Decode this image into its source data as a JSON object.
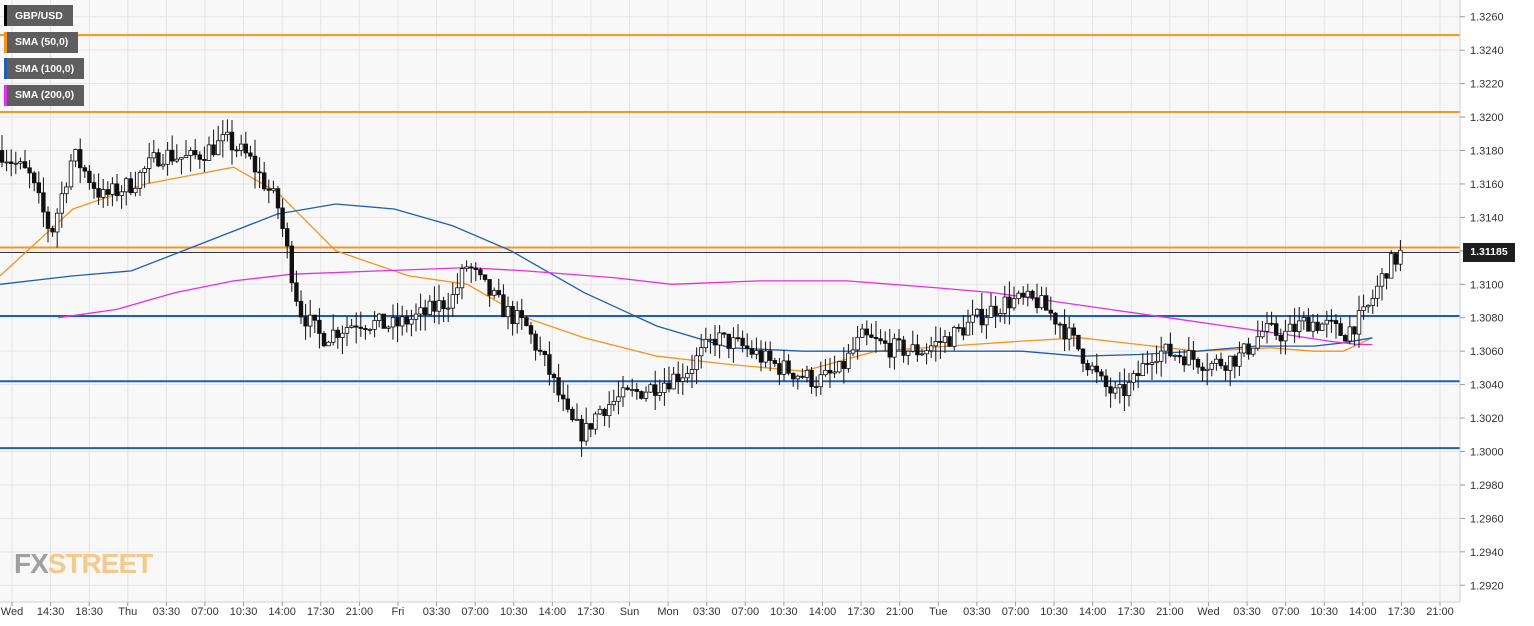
{
  "legend": [
    {
      "label": "GBP/USD",
      "color": "#000000"
    },
    {
      "label": "SMA (50,0)",
      "color": "#f7931e"
    },
    {
      "label": "SMA (100,0)",
      "color": "#1f5fb0"
    },
    {
      "label": "SMA (200,0)",
      "color": "#e62ee6"
    }
  ],
  "current_price": "1.31185",
  "logo": {
    "part1": "FX",
    "part2": "STREET"
  },
  "chart_data": {
    "type": "candlestick",
    "title": "GBP/USD",
    "ylim": [
      1.291,
      1.327
    ],
    "y_ticks": [
      "1.3260",
      "1.3240",
      "1.3220",
      "1.3200",
      "1.3180",
      "1.3160",
      "1.3140",
      "1.3120",
      "1.3100",
      "1.3080",
      "1.3060",
      "1.3040",
      "1.3020",
      "1.3000",
      "1.2980",
      "1.2960",
      "1.2940",
      "1.2920"
    ],
    "x_ticks": [
      "Wed",
      "14:30",
      "18:30",
      "Thu",
      "03:30",
      "07:00",
      "10:30",
      "14:00",
      "17:30",
      "21:00",
      "Fri",
      "03:30",
      "07:00",
      "10:30",
      "14:00",
      "17:30",
      "Sun",
      "Mon",
      "03:30",
      "07:00",
      "10:30",
      "14:00",
      "17:30",
      "21:00",
      "Tue",
      "03:30",
      "07:00",
      "10:30",
      "14:00",
      "17:30",
      "21:00",
      "Wed",
      "03:30",
      "07:00",
      "10:30",
      "14:00",
      "17:30",
      "21:00"
    ],
    "grid": true,
    "horizontal_levels": [
      {
        "value": 1.3249,
        "color": "#f7931e"
      },
      {
        "value": 1.3203,
        "color": "#f7931e"
      },
      {
        "value": 1.3122,
        "color": "#f7931e"
      },
      {
        "value": 1.3119,
        "color": "#333333"
      },
      {
        "value": 1.3081,
        "color": "#1f5fb0"
      },
      {
        "value": 1.3042,
        "color": "#1f5fb0"
      },
      {
        "value": 1.3002,
        "color": "#1f5fb0"
      }
    ],
    "price_path": [
      [
        0,
        1.318
      ],
      [
        0.02,
        1.3165
      ],
      [
        0.035,
        1.313
      ],
      [
        0.05,
        1.3178
      ],
      [
        0.07,
        1.3152
      ],
      [
        0.09,
        1.316
      ],
      [
        0.11,
        1.3178
      ],
      [
        0.13,
        1.3175
      ],
      [
        0.155,
        1.3186
      ],
      [
        0.17,
        1.3176
      ],
      [
        0.19,
        1.3148
      ],
      [
        0.205,
        1.3085
      ],
      [
        0.22,
        1.3068
      ],
      [
        0.245,
        1.3078
      ],
      [
        0.27,
        1.3075
      ],
      [
        0.29,
        1.3082
      ],
      [
        0.31,
        1.3092
      ],
      [
        0.32,
        1.3112
      ],
      [
        0.33,
        1.31
      ],
      [
        0.345,
        1.3085
      ],
      [
        0.36,
        1.3075
      ],
      [
        0.375,
        1.305
      ],
      [
        0.39,
        1.3018
      ],
      [
        0.4,
        1.301
      ],
      [
        0.41,
        1.3025
      ],
      [
        0.425,
        1.3032
      ],
      [
        0.445,
        1.3038
      ],
      [
        0.47,
        1.3048
      ],
      [
        0.49,
        1.3068
      ],
      [
        0.51,
        1.3062
      ],
      [
        0.53,
        1.3052
      ],
      [
        0.56,
        1.3042
      ],
      [
        0.575,
        1.3048
      ],
      [
        0.59,
        1.3068
      ],
      [
        0.61,
        1.3062
      ],
      [
        0.63,
        1.306
      ],
      [
        0.65,
        1.3068
      ],
      [
        0.67,
        1.308
      ],
      [
        0.69,
        1.309
      ],
      [
        0.71,
        1.309
      ],
      [
        0.725,
        1.3078
      ],
      [
        0.74,
        1.306
      ],
      [
        0.755,
        1.304
      ],
      [
        0.765,
        1.3033
      ],
      [
        0.775,
        1.304
      ],
      [
        0.79,
        1.306
      ],
      [
        0.81,
        1.3058
      ],
      [
        0.83,
        1.3052
      ],
      [
        0.85,
        1.3057
      ],
      [
        0.865,
        1.3072
      ],
      [
        0.88,
        1.307
      ],
      [
        0.895,
        1.3078
      ],
      [
        0.91,
        1.3075
      ],
      [
        0.92,
        1.307
      ],
      [
        0.935,
        1.3082
      ],
      [
        0.95,
        1.311
      ],
      [
        0.96,
        1.3119
      ]
    ],
    "series": [
      {
        "name": "SMA (50,0)",
        "color": "#f7931e",
        "points": [
          [
            0,
            1.3105
          ],
          [
            0.05,
            1.3145
          ],
          [
            0.1,
            1.316
          ],
          [
            0.16,
            1.317
          ],
          [
            0.19,
            1.3155
          ],
          [
            0.23,
            1.312
          ],
          [
            0.28,
            1.3105
          ],
          [
            0.32,
            1.31
          ],
          [
            0.36,
            1.308
          ],
          [
            0.4,
            1.3068
          ],
          [
            0.45,
            1.3057
          ],
          [
            0.5,
            1.3052
          ],
          [
            0.55,
            1.3048
          ],
          [
            0.6,
            1.306
          ],
          [
            0.65,
            1.3063
          ],
          [
            0.7,
            1.3066
          ],
          [
            0.74,
            1.3068
          ],
          [
            0.78,
            1.3064
          ],
          [
            0.82,
            1.306
          ],
          [
            0.87,
            1.3062
          ],
          [
            0.9,
            1.306
          ],
          [
            0.92,
            1.306
          ],
          [
            0.94,
            1.3068
          ]
        ]
      },
      {
        "name": "SMA (100,0)",
        "color": "#1f5fb0",
        "points": [
          [
            0,
            1.31
          ],
          [
            0.05,
            1.3105
          ],
          [
            0.09,
            1.3108
          ],
          [
            0.14,
            1.3125
          ],
          [
            0.19,
            1.3142
          ],
          [
            0.23,
            1.3148
          ],
          [
            0.27,
            1.3145
          ],
          [
            0.31,
            1.3135
          ],
          [
            0.35,
            1.312
          ],
          [
            0.4,
            1.3095
          ],
          [
            0.45,
            1.3075
          ],
          [
            0.5,
            1.3062
          ],
          [
            0.55,
            1.306
          ],
          [
            0.6,
            1.306
          ],
          [
            0.65,
            1.306
          ],
          [
            0.7,
            1.306
          ],
          [
            0.74,
            1.3057
          ],
          [
            0.78,
            1.3058
          ],
          [
            0.82,
            1.306
          ],
          [
            0.86,
            1.3063
          ],
          [
            0.9,
            1.3063
          ],
          [
            0.92,
            1.3065
          ],
          [
            0.94,
            1.3068
          ]
        ]
      },
      {
        "name": "SMA (200,0)",
        "color": "#e62ee6",
        "points": [
          [
            0.04,
            1.308
          ],
          [
            0.08,
            1.3085
          ],
          [
            0.12,
            1.3095
          ],
          [
            0.16,
            1.3102
          ],
          [
            0.2,
            1.3106
          ],
          [
            0.26,
            1.3108
          ],
          [
            0.32,
            1.311
          ],
          [
            0.36,
            1.3108
          ],
          [
            0.42,
            1.3104
          ],
          [
            0.46,
            1.31
          ],
          [
            0.52,
            1.3102
          ],
          [
            0.58,
            1.3102
          ],
          [
            0.64,
            1.3098
          ],
          [
            0.68,
            1.3095
          ],
          [
            0.72,
            1.309
          ],
          [
            0.76,
            1.3085
          ],
          [
            0.8,
            1.308
          ],
          [
            0.84,
            1.3075
          ],
          [
            0.88,
            1.307
          ],
          [
            0.91,
            1.3066
          ],
          [
            0.93,
            1.3064
          ],
          [
            0.94,
            1.3064
          ]
        ]
      }
    ]
  }
}
